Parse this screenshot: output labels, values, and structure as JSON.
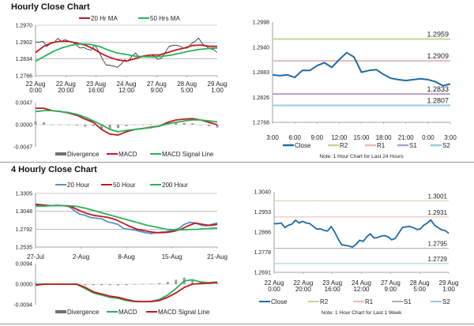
{
  "panels": {
    "hourly_title": "Hourly Close Chart",
    "four_hourly_title": "4 Hourly Close Chart"
  },
  "colors": {
    "red": "#c0191c",
    "green": "#2bb05a",
    "blue": "#5b8fc9",
    "close": "#1f6aa5",
    "r2": "#c3d69b",
    "r1": "#e6b9b8",
    "s1": "#b3a2c7",
    "s2": "#93cddd",
    "divergence": "#808080"
  },
  "chart_data": [
    {
      "id": "hourly-price",
      "type": "line",
      "yticks": [
        "1.2970",
        "1.2902",
        "1.2834",
        "1.2766"
      ],
      "ylim": [
        1.2766,
        1.297
      ],
      "xticks": [
        "22 Aug\n0:00",
        "22 Aug\n20:00",
        "23 Aug\n16:00",
        "24 Aug\n12:00",
        "27 Aug\n9:00",
        "28 Aug\n5:00",
        "29 Aug\n1:00"
      ],
      "grid": true,
      "legend": "top",
      "series": [
        {
          "name": "",
          "role": "price",
          "color": "#222222",
          "values": [
            1.2902,
            1.2902,
            1.2905,
            1.2885,
            1.2895,
            1.29,
            1.2917,
            1.2905,
            1.2912,
            1.2905,
            1.2902,
            1.289,
            1.2878,
            1.288,
            1.2873,
            1.287,
            1.289,
            1.2865,
            1.2835,
            1.281,
            1.2808,
            1.2805,
            1.28,
            1.2812,
            1.283,
            1.2825,
            1.2845,
            1.2858,
            1.284,
            1.2842,
            1.2848,
            1.285,
            1.2845,
            1.2832,
            1.2838,
            1.2862,
            1.2885,
            1.2888,
            1.289,
            1.2885,
            1.2877,
            1.2878,
            1.2895,
            1.2905,
            1.2918,
            1.2895,
            1.2885,
            1.2875,
            1.2872,
            1.286
          ]
        },
        {
          "name": "20 Hr MA",
          "color": "#c0191c",
          "values": [
            1.286,
            1.2885,
            1.29,
            1.2905,
            1.2905,
            1.2898,
            1.289,
            1.2875,
            1.2855,
            1.284,
            1.283,
            1.2825,
            1.2835,
            1.2845,
            1.285,
            1.285,
            1.286,
            1.287,
            1.2878,
            1.2888,
            1.289,
            1.2885,
            1.2885
          ]
        },
        {
          "name": "50 Hrs MA",
          "color": "#2bb05a",
          "values": [
            1.2825,
            1.2845,
            1.2865,
            1.288,
            1.289,
            1.2895,
            1.2893,
            1.2885,
            1.287,
            1.2858,
            1.2852,
            1.2845,
            1.2843,
            1.2842,
            1.2845,
            1.285,
            1.2858,
            1.2866,
            1.2872,
            1.2876,
            1.2878
          ]
        }
      ]
    },
    {
      "id": "hourly-macd",
      "type": "line",
      "yticks": [
        "0.0047",
        "0.0000",
        "-0.0047"
      ],
      "ylim": [
        -0.0047,
        0.0047
      ],
      "legend": "bottom",
      "divergence": {
        "name": "Divergence",
        "values": [
          0.0007,
          0.0005,
          0,
          0,
          -0.0001,
          -0.0002,
          -0.0004,
          -0.0003,
          -0.001,
          -0.001,
          -0.0007,
          -0.0003,
          0,
          0,
          0.0001,
          0,
          0.0003,
          0.0005,
          0.0004,
          0.0003,
          0,
          -0.0003,
          -0.0006
        ]
      },
      "series": [
        {
          "name": "MACD",
          "color": "#c0191c",
          "values": [
            0.0035,
            0.0035,
            0.003,
            0.0028,
            0.0025,
            0.002,
            0.0012,
            0.0005,
            -0.001,
            -0.002,
            -0.0022,
            -0.0015,
            -0.001,
            -0.0008,
            -0.0005,
            -0.0003,
            0.0005,
            0.001,
            0.0012,
            0.0013,
            0.001,
            0.0005,
            0.0
          ]
        },
        {
          "name": "MACD Signal Line",
          "color": "#2bb05a",
          "values": [
            0.0028,
            0.003,
            0.003,
            0.0028,
            0.0026,
            0.0022,
            0.0016,
            0.0008,
            0.0,
            -0.001,
            -0.0015,
            -0.0012,
            -0.001,
            -0.0008,
            -0.0006,
            -0.0003,
            0.0002,
            0.0005,
            0.0008,
            0.001,
            0.001,
            0.0008,
            0.0006
          ]
        }
      ]
    },
    {
      "id": "hourly-24h",
      "type": "line",
      "yticks": [
        "1.2998",
        "1.2940",
        "1.2883",
        "1.2826",
        "1.2768"
      ],
      "ylim": [
        1.2768,
        1.2998
      ],
      "xticks": [
        "3:00",
        "6:00",
        "9:00",
        "12:00",
        "15:00",
        "18:00",
        "21:00",
        "0:00",
        "3:00"
      ],
      "legend": "bottom",
      "note": "Note: 1 Hour Chart for Last 24 Hours",
      "levels": [
        {
          "name": "R2",
          "value": 1.2959,
          "label": "1.2959",
          "color": "#c3d69b"
        },
        {
          "name": "R1",
          "value": 1.2909,
          "label": "1.2909",
          "color": "#e6b9b8"
        },
        {
          "name": "S1",
          "value": 1.2833,
          "label": "1.2833",
          "color": "#b3a2c7"
        },
        {
          "name": "S2",
          "value": 1.2807,
          "label": "1.2807",
          "color": "#93cddd"
        }
      ],
      "series": [
        {
          "name": "Close",
          "color": "#1f6aa5",
          "values": [
            1.2877,
            1.2875,
            1.2877,
            1.2871,
            1.2887,
            1.2887,
            1.2898,
            1.2905,
            1.2894,
            1.2912,
            1.2928,
            1.2918,
            1.2883,
            1.2887,
            1.2889,
            1.2878,
            1.2869,
            1.2866,
            1.2864,
            1.2866,
            1.2868,
            1.2866,
            1.2861,
            1.2852,
            1.2856
          ]
        }
      ]
    },
    {
      "id": "four-hourly-price",
      "type": "line",
      "yticks": [
        "1.3305",
        "1.3048",
        "1.2792",
        "1.2535"
      ],
      "ylim": [
        1.2535,
        1.3305
      ],
      "xticks": [
        "27-Jul",
        "2-Aug",
        "8-Aug",
        "15-Aug",
        "21-Aug"
      ],
      "grid": true,
      "legend": "top",
      "series": [
        {
          "name": "20 Hour",
          "color": "#5b8fc9",
          "values": [
            1.313,
            1.312,
            1.3125,
            1.313,
            1.3135,
            1.3128,
            1.3125,
            1.306,
            1.301,
            1.299,
            1.296,
            1.295,
            1.294,
            1.29,
            1.288,
            1.286,
            1.28,
            1.279,
            1.278,
            1.276,
            1.274,
            1.273,
            1.274,
            1.275,
            1.276,
            1.278,
            1.28,
            1.286,
            1.289,
            1.288,
            1.285,
            1.284,
            1.286,
            1.288
          ]
        },
        {
          "name": "50 Hour",
          "color": "#c0191c",
          "values": [
            1.315,
            1.314,
            1.313,
            1.313,
            1.3128,
            1.311,
            1.306,
            1.302,
            1.299,
            1.2975,
            1.296,
            1.293,
            1.288,
            1.283,
            1.279,
            1.277,
            1.275,
            1.274,
            1.2745,
            1.276,
            1.279,
            1.284,
            1.288,
            1.286,
            1.2845,
            1.286
          ]
        },
        {
          "name": "200 Hour",
          "color": "#2bb05a",
          "values": [
            1.312,
            1.3125,
            1.3128,
            1.313,
            1.312,
            1.309,
            1.305,
            1.301,
            1.297,
            1.293,
            1.289,
            1.285,
            1.282,
            1.279,
            1.278,
            1.2785,
            1.279,
            1.28,
            1.281
          ]
        }
      ]
    },
    {
      "id": "four-hourly-macd",
      "type": "line",
      "yticks": [
        "0.0094",
        "0.0000",
        "-0.0094"
      ],
      "ylim": [
        -0.0094,
        0.0094
      ],
      "legend": "bottom",
      "divergence": {
        "name": "Divergence",
        "values": [
          0.0005,
          0,
          0,
          0,
          0,
          -0.0001,
          -0.0005,
          -0.0005,
          -0.0005,
          -0.0005,
          -0.0005,
          -0.0005,
          -0.0002,
          0,
          0.0002,
          0.0005,
          0.001,
          0.002,
          0.003,
          0.002,
          0.0007,
          0.0002,
          0.0003
        ]
      },
      "series": [
        {
          "name": "MACD",
          "color": "#2bb05a",
          "values": [
            0,
            0,
            0,
            0,
            0,
            -0.0001,
            -0.002,
            -0.004,
            -0.005,
            -0.006,
            -0.0065,
            -0.0075,
            -0.008,
            -0.008,
            -0.0078,
            -0.007,
            -0.005,
            -0.002,
            0.0015,
            0.002,
            0.001,
            0.0007,
            0.001
          ]
        },
        {
          "name": "MACD Signal Line",
          "color": "#c0191c",
          "values": [
            -0.0005,
            0,
            0,
            0,
            0,
            0,
            -0.0015,
            -0.0035,
            -0.0045,
            -0.0055,
            -0.006,
            -0.007,
            -0.0078,
            -0.008,
            -0.008,
            -0.0075,
            -0.006,
            -0.004,
            -0.0015,
            0,
            0.0003,
            0.0005,
            0.0007
          ]
        }
      ]
    },
    {
      "id": "weekly-close",
      "type": "line",
      "yticks": [
        "1.3040",
        "1.2953",
        "1.2866",
        "1.2778",
        "1.2691"
      ],
      "ylim": [
        1.2691,
        1.304
      ],
      "xticks": [
        "22 Aug\n0:00",
        "22 Aug\n20:00",
        "23 Aug\n16:00",
        "24 Aug\n12:00",
        "27 Aug\n9:00",
        "28 Aug\n5:00",
        "29 Aug\n1:00"
      ],
      "legend": "bottom",
      "note": "Note: 1 Hour Chart for Last 1 Week",
      "levels": [
        {
          "name": "R2",
          "value": 1.3001,
          "label": "1.3001",
          "color": "#c3d69b"
        },
        {
          "name": "R1",
          "value": 1.2931,
          "label": "1.2931",
          "color": "#e6b9b8"
        },
        {
          "name": "S1",
          "value": 1.2795,
          "label": "1.2795",
          "color": "#b3a2c7"
        },
        {
          "name": "S2",
          "value": 1.2729,
          "label": "1.2729",
          "color": "#93cddd"
        }
      ],
      "series": [
        {
          "name": "Close",
          "color": "#1f6aa5",
          "values": [
            1.2902,
            1.2902,
            1.2905,
            1.2885,
            1.2895,
            1.29,
            1.2917,
            1.2905,
            1.2912,
            1.2905,
            1.2902,
            1.289,
            1.2878,
            1.288,
            1.2873,
            1.287,
            1.289,
            1.2865,
            1.2835,
            1.281,
            1.2808,
            1.2805,
            1.28,
            1.2812,
            1.283,
            1.2825,
            1.2845,
            1.2858,
            1.284,
            1.2842,
            1.2848,
            1.285,
            1.2845,
            1.2832,
            1.2838,
            1.2862,
            1.2885,
            1.2888,
            1.289,
            1.2885,
            1.2877,
            1.2878,
            1.2895,
            1.2905,
            1.2918,
            1.2895,
            1.2885,
            1.2875,
            1.2872,
            1.286
          ]
        }
      ]
    }
  ]
}
